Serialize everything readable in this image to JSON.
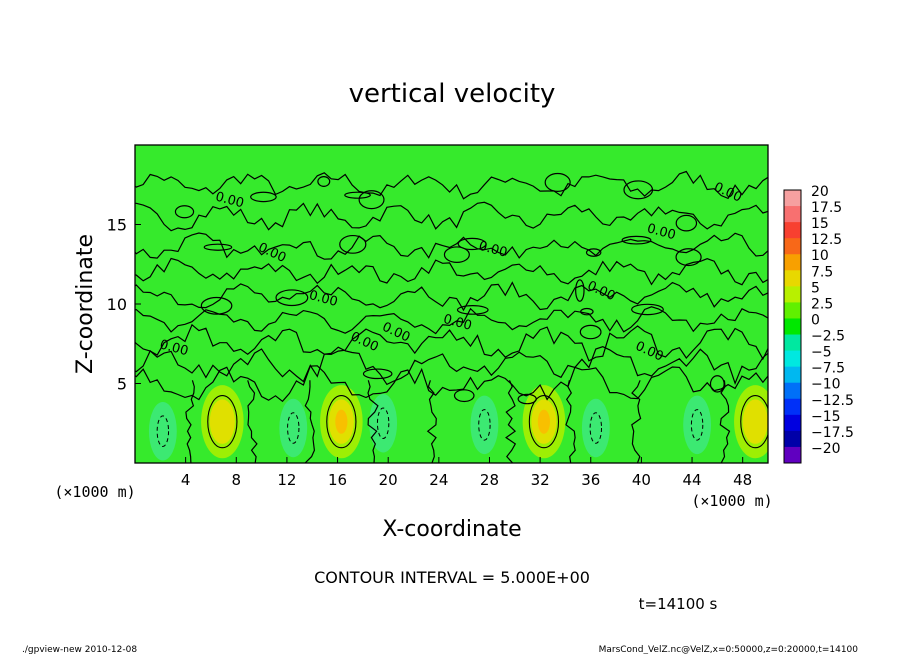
{
  "chart_data": {
    "type": "heatmap",
    "title": "vertical velocity",
    "xlabel": "X-coordinate",
    "ylabel": "Z-coordinate",
    "x_unit": "(×1000 m)",
    "x_unit_right": "(×1000 m)",
    "xlim": [
      0,
      50
    ],
    "ylim": [
      0,
      20
    ],
    "x_ticks": [
      4,
      8,
      12,
      16,
      20,
      24,
      28,
      32,
      36,
      40,
      44,
      48
    ],
    "y_ticks": [
      5,
      10,
      15
    ],
    "contour_interval_text": "CONTOUR INTERVAL = 5.000E+00",
    "contour_label": "0.00",
    "time_text": "t=14100 s",
    "footer_left": "./gpview-new   2010-12-08",
    "footer_right": "MarsCond_VelZ.nc@VelZ,x=0:50000,z=0:20000,t=14100",
    "updrafts": [
      {
        "x": 6.9,
        "z": 2.6,
        "peak": 6.0
      },
      {
        "x": 16.3,
        "z": 2.6,
        "peak": 7.5
      },
      {
        "x": 32.3,
        "z": 2.6,
        "peak": 7.5
      },
      {
        "x": 49.0,
        "z": 2.6,
        "peak": 5.0
      }
    ],
    "downdrafts": [
      {
        "x": 2.2,
        "z": 2.0,
        "peak": -4.0
      },
      {
        "x": 12.5,
        "z": 2.2,
        "peak": -3.5
      },
      {
        "x": 19.6,
        "z": 2.5,
        "peak": -2.5
      },
      {
        "x": 27.6,
        "z": 2.4,
        "peak": -2.0
      },
      {
        "x": 36.4,
        "z": 2.2,
        "peak": -4.0
      },
      {
        "x": 44.4,
        "z": 2.4,
        "peak": -4.0
      }
    ],
    "colorbar": {
      "labels": [
        "20",
        "17.5",
        "15",
        "12.5",
        "10",
        "7.5",
        "5",
        "2.5",
        "0",
        "−2.5",
        "−5",
        "−7.5",
        "−10",
        "−12.5",
        "−15",
        "−17.5",
        "−20"
      ],
      "colors": [
        "#f6a0a0",
        "#f87070",
        "#f84030",
        "#f86818",
        "#f8a000",
        "#e8d800",
        "#b8f000",
        "#60f000",
        "#00e800",
        "#00e8a0",
        "#00e8e0",
        "#00b8f0",
        "#0070f8",
        "#0030f8",
        "#0000e0",
        "#0000a8",
        "#6000c0"
      ]
    }
  }
}
